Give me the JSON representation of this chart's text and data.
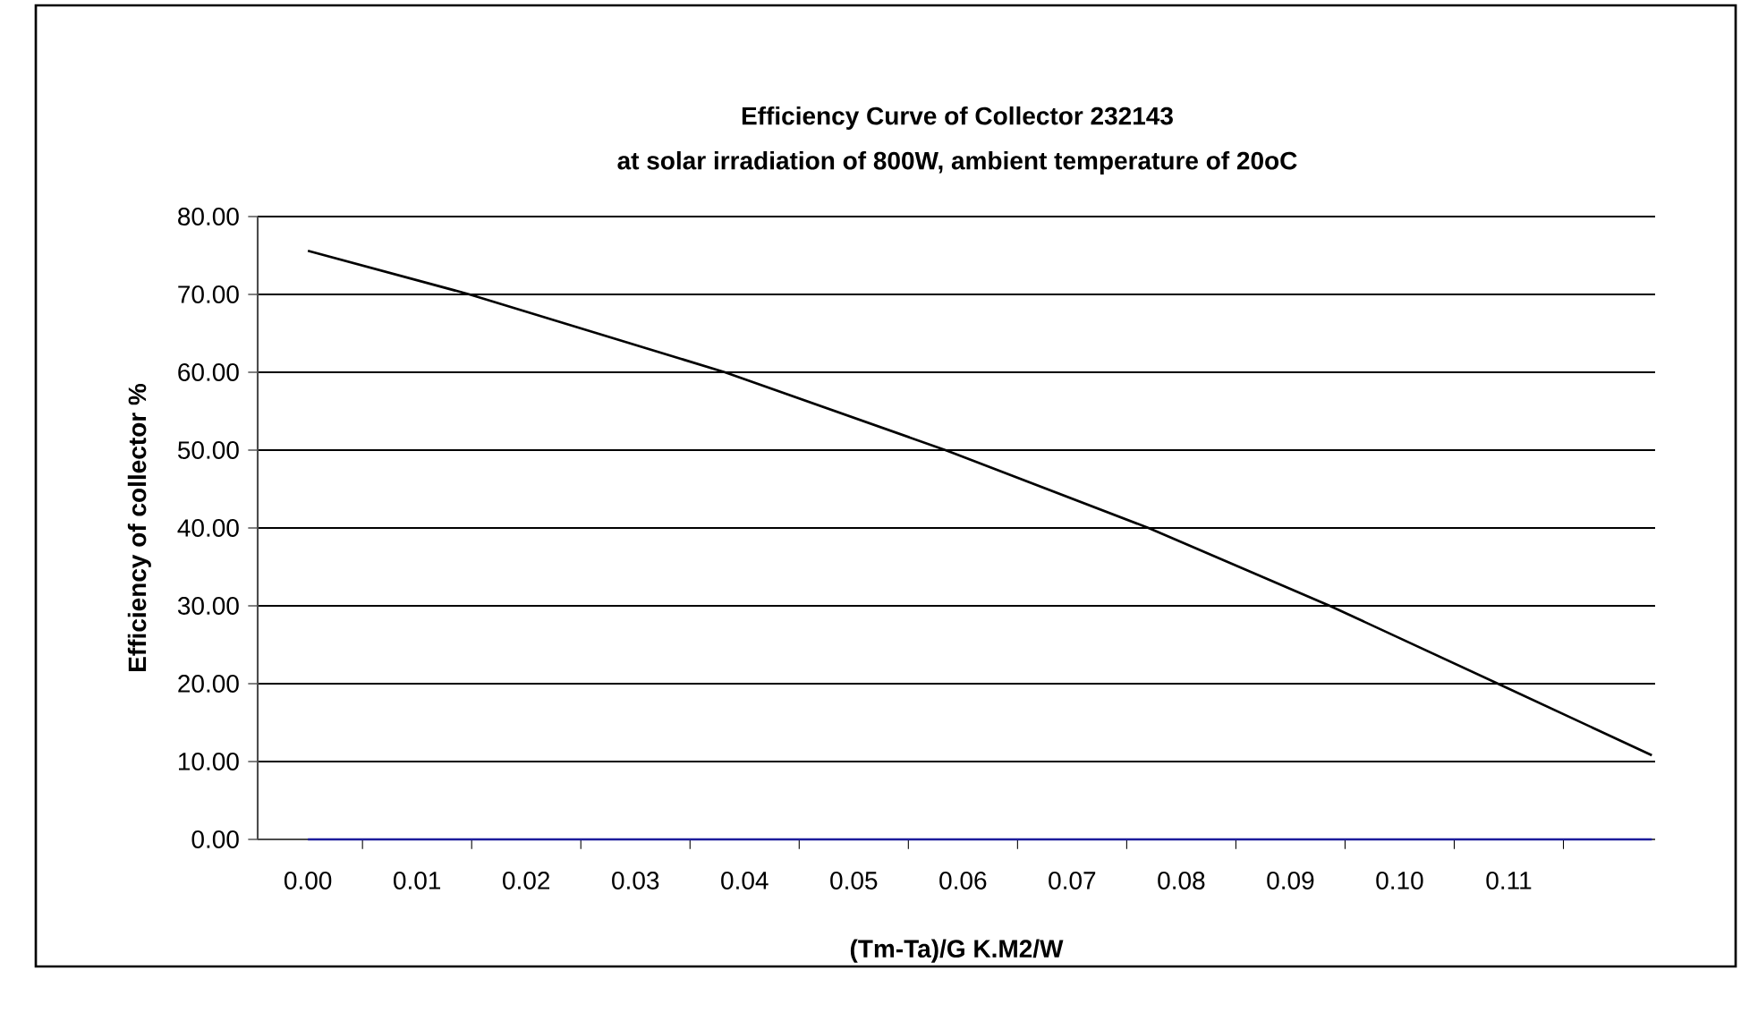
{
  "chart_data": {
    "type": "line",
    "title": "Efficiency Curve of Collector 232143",
    "subtitle": "at solar irradiation of 800W, ambient temperature of 20oC",
    "xlabel": "(Tm-Ta)/G     K.M2/W",
    "ylabel": "Efficiency of collector %",
    "series": [
      {
        "color": "#000000",
        "x": [
          0,
          0.0148,
          0.0382,
          0.0584,
          0.077,
          0.0936,
          0.109,
          0.1231
        ],
        "values": [
          75.6,
          70,
          60,
          50,
          40,
          30,
          20,
          10.8
        ]
      },
      {
        "color": "#1c1c9c",
        "x": [
          0,
          0.1231
        ],
        "values": [
          0,
          0
        ]
      }
    ],
    "xlim": [
      -0.0046,
      0.1234
    ],
    "ylim": [
      0,
      80
    ],
    "xticks": [
      {
        "value": 0,
        "label": "0.00"
      },
      {
        "value": 0.01,
        "label": "0.01"
      },
      {
        "value": 0.02,
        "label": "0.02"
      },
      {
        "value": 0.03,
        "label": "0.03"
      },
      {
        "value": 0.04,
        "label": "0.04"
      },
      {
        "value": 0.05,
        "label": "0.05"
      },
      {
        "value": 0.06,
        "label": "0.06"
      },
      {
        "value": 0.07,
        "label": "0.07"
      },
      {
        "value": 0.08,
        "label": "0.08"
      },
      {
        "value": 0.09,
        "label": "0.09"
      },
      {
        "value": 0.1,
        "label": "0.10"
      },
      {
        "value": 0.11,
        "label": "0.11"
      },
      {
        "value": 0.005,
        "label": null
      },
      {
        "value": 0.015,
        "label": null
      },
      {
        "value": 0.025,
        "label": null
      },
      {
        "value": 0.035,
        "label": null
      },
      {
        "value": 0.045,
        "label": null
      },
      {
        "value": 0.055,
        "label": null
      },
      {
        "value": 0.065,
        "label": null
      },
      {
        "value": 0.075,
        "label": null
      },
      {
        "value": 0.085,
        "label": null
      },
      {
        "value": 0.095,
        "label": null
      },
      {
        "value": 0.105,
        "label": null
      },
      {
        "value": 0.115,
        "label": null
      }
    ],
    "yticks": [
      {
        "value": 0,
        "label": "0.00"
      },
      {
        "value": 10,
        "label": "10.00"
      },
      {
        "value": 20,
        "label": "20.00"
      },
      {
        "value": 30,
        "label": "30.00"
      },
      {
        "value": 40,
        "label": "40.00"
      },
      {
        "value": 50,
        "label": "50.00"
      },
      {
        "value": 60,
        "label": "60.00"
      },
      {
        "value": 70,
        "label": "70.00"
      },
      {
        "value": 80,
        "label": "80.00"
      }
    ],
    "grid": "y",
    "marker": "none",
    "line_style": "solid"
  }
}
